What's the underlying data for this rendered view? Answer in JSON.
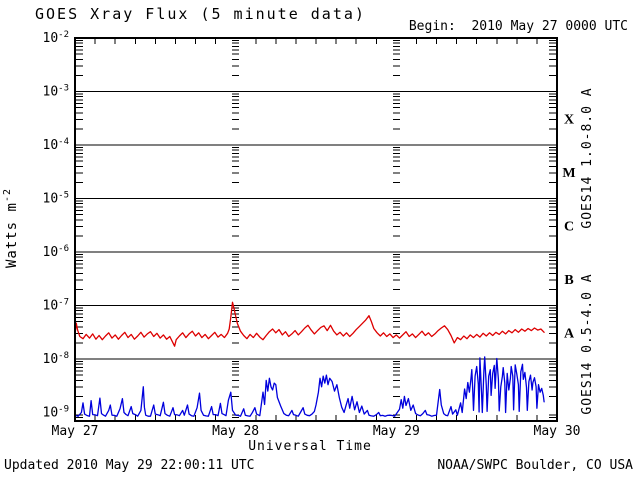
{
  "header": {
    "title": "GOES Xray Flux (5 minute data)",
    "begin": "Begin:  2010 May 27 0000 UTC"
  },
  "footer": {
    "updated": "Updated 2010 May 29 22:00:11 UTC",
    "credit": "NOAA/SWPC Boulder, CO USA"
  },
  "colors": {
    "long_channel": "#dd0000",
    "short_channel": "#0000dd",
    "axis": "#000000",
    "background": "#ffffff"
  },
  "chart_data": {
    "type": "line",
    "title": "GOES Xray Flux (5 minute data)",
    "xlabel": "Universal Time",
    "ylabel_base": "Watts m",
    "ylabel_exp": "-2",
    "x_unit_days_since": "2010 May 27 0000 UTC",
    "xlim_days": [
      0,
      3
    ],
    "ylim_log10": [
      -9.16,
      -2
    ],
    "y_decade_exponents": [
      -2,
      -3,
      -4,
      -5,
      -6,
      -7,
      -8,
      -9
    ],
    "gridline_decades": [
      -3,
      -4,
      -5,
      -6,
      -7,
      -8
    ],
    "xticklabels": [
      "May 27",
      "May 28",
      "May 29",
      "May 30"
    ],
    "xtick_days": [
      0,
      1,
      2,
      3
    ],
    "day_boundary_lines_days": [
      1,
      2
    ],
    "minor_xtick_hours": 3,
    "flux_classes": [
      {
        "label": "X",
        "log10_center": -3.5
      },
      {
        "label": "M",
        "log10_center": -4.5
      },
      {
        "label": "C",
        "log10_center": -5.5
      },
      {
        "label": "B",
        "log10_center": -6.5
      },
      {
        "label": "A",
        "log10_center": -7.5
      }
    ],
    "series": [
      {
        "name": "long",
        "label": "GOES14 1.0-8.0 A",
        "color_key": "long_channel",
        "noise_log10": 0.025,
        "t_log10flux": [
          0,
          -7.55,
          0.008,
          -7.33,
          0.016,
          -7.46,
          0.03,
          -7.58,
          0.05,
          -7.62,
          0.07,
          -7.54,
          0.09,
          -7.61,
          0.11,
          -7.53,
          0.13,
          -7.63,
          0.15,
          -7.56,
          0.17,
          -7.64,
          0.19,
          -7.57,
          0.21,
          -7.51,
          0.23,
          -7.61,
          0.25,
          -7.55,
          0.27,
          -7.63,
          0.29,
          -7.56,
          0.31,
          -7.5,
          0.33,
          -7.6,
          0.35,
          -7.54,
          0.37,
          -7.63,
          0.39,
          -7.57,
          0.41,
          -7.5,
          0.43,
          -7.59,
          0.45,
          -7.53,
          0.47,
          -7.49,
          0.49,
          -7.58,
          0.51,
          -7.52,
          0.53,
          -7.61,
          0.55,
          -7.55,
          0.57,
          -7.63,
          0.59,
          -7.58,
          0.61,
          -7.7,
          0.62,
          -7.76,
          0.63,
          -7.64,
          0.65,
          -7.57,
          0.67,
          -7.51,
          0.69,
          -7.6,
          0.71,
          -7.53,
          0.73,
          -7.48,
          0.75,
          -7.57,
          0.77,
          -7.51,
          0.79,
          -7.6,
          0.81,
          -7.54,
          0.83,
          -7.62,
          0.85,
          -7.56,
          0.87,
          -7.5,
          0.89,
          -7.59,
          0.91,
          -7.54,
          0.93,
          -7.6,
          0.95,
          -7.52,
          0.96,
          -7.44,
          0.97,
          -7.22,
          0.98,
          -6.94,
          0.99,
          -7.06,
          1.0,
          -7.2,
          1.01,
          -7.33,
          1.03,
          -7.48,
          1.05,
          -7.56,
          1.07,
          -7.62,
          1.09,
          -7.54,
          1.11,
          -7.6,
          1.13,
          -7.52,
          1.15,
          -7.59,
          1.17,
          -7.64,
          1.19,
          -7.56,
          1.21,
          -7.49,
          1.23,
          -7.44,
          1.25,
          -7.51,
          1.27,
          -7.45,
          1.29,
          -7.55,
          1.31,
          -7.49,
          1.33,
          -7.58,
          1.35,
          -7.53,
          1.37,
          -7.47,
          1.39,
          -7.55,
          1.41,
          -7.49,
          1.43,
          -7.42,
          1.45,
          -7.37,
          1.47,
          -7.46,
          1.49,
          -7.53,
          1.51,
          -7.47,
          1.53,
          -7.41,
          1.55,
          -7.38,
          1.57,
          -7.47,
          1.59,
          -7.37,
          1.61,
          -7.48,
          1.63,
          -7.55,
          1.65,
          -7.5,
          1.67,
          -7.57,
          1.69,
          -7.51,
          1.71,
          -7.58,
          1.73,
          -7.52,
          1.75,
          -7.45,
          1.77,
          -7.39,
          1.79,
          -7.33,
          1.81,
          -7.27,
          1.83,
          -7.19,
          1.845,
          -7.3,
          1.86,
          -7.43,
          1.88,
          -7.51,
          1.9,
          -7.57,
          1.92,
          -7.51,
          1.94,
          -7.58,
          1.96,
          -7.53,
          1.98,
          -7.6,
          2.0,
          -7.55,
          2.02,
          -7.61,
          2.04,
          -7.55,
          2.06,
          -7.49,
          2.08,
          -7.58,
          2.1,
          -7.53,
          2.12,
          -7.6,
          2.14,
          -7.54,
          2.16,
          -7.48,
          2.18,
          -7.56,
          2.2,
          -7.51,
          2.22,
          -7.58,
          2.24,
          -7.53,
          2.26,
          -7.47,
          2.28,
          -7.42,
          2.3,
          -7.38,
          2.32,
          -7.45,
          2.34,
          -7.56,
          2.36,
          -7.7,
          2.38,
          -7.6,
          2.4,
          -7.64,
          2.42,
          -7.57,
          2.44,
          -7.62,
          2.46,
          -7.55,
          2.48,
          -7.6,
          2.5,
          -7.54,
          2.52,
          -7.59,
          2.54,
          -7.52,
          2.56,
          -7.57,
          2.58,
          -7.51,
          2.6,
          -7.56,
          2.62,
          -7.5,
          2.64,
          -7.54,
          2.66,
          -7.48,
          2.68,
          -7.53,
          2.7,
          -7.47,
          2.72,
          -7.51,
          2.74,
          -7.45,
          2.76,
          -7.5,
          2.78,
          -7.44,
          2.8,
          -7.48,
          2.82,
          -7.43,
          2.84,
          -7.47,
          2.86,
          -7.42,
          2.88,
          -7.46,
          2.9,
          -7.44,
          2.92,
          -7.5
        ]
      },
      {
        "name": "short",
        "label": "GOES14 0.5-4.0 A",
        "color_key": "short_channel",
        "noise_log10": 0.01,
        "t_log10flux": [
          0,
          -9.05,
          0.02,
          -9.07,
          0.04,
          -9.0,
          0.05,
          -8.82,
          0.06,
          -9.03,
          0.09,
          -9.07,
          0.1,
          -8.78,
          0.11,
          -9.04,
          0.14,
          -9.06,
          0.155,
          -8.73,
          0.165,
          -9.02,
          0.19,
          -9.07,
          0.21,
          -8.96,
          0.22,
          -8.86,
          0.23,
          -9.05,
          0.26,
          -9.07,
          0.28,
          -8.93,
          0.295,
          -8.74,
          0.305,
          -9.0,
          0.33,
          -9.06,
          0.35,
          -8.89,
          0.36,
          -9.02,
          0.39,
          -9.07,
          0.41,
          -8.96,
          0.425,
          -8.52,
          0.432,
          -8.9,
          0.44,
          -9.05,
          0.47,
          -9.07,
          0.49,
          -8.86,
          0.5,
          -9.03,
          0.53,
          -9.06,
          0.55,
          -8.81,
          0.56,
          -9.02,
          0.59,
          -9.07,
          0.61,
          -8.91,
          0.62,
          -9.04,
          0.65,
          -9.06,
          0.67,
          -8.96,
          0.68,
          -9.05,
          0.7,
          -8.86,
          0.71,
          -9.03,
          0.74,
          -9.07,
          0.76,
          -8.91,
          0.775,
          -8.64,
          0.785,
          -8.96,
          0.8,
          -9.05,
          0.83,
          -9.07,
          0.85,
          -8.89,
          0.86,
          -9.04,
          0.89,
          -9.06,
          0.905,
          -8.83,
          0.915,
          -9.02,
          0.94,
          -9.06,
          0.955,
          -8.77,
          0.97,
          -8.62,
          0.98,
          -8.96,
          1.0,
          -9.05,
          1.03,
          -9.07,
          1.05,
          -8.93,
          1.06,
          -9.05,
          1.09,
          -9.07,
          1.12,
          -8.91,
          1.13,
          -9.03,
          1.15,
          -9.06,
          1.17,
          -8.62,
          1.18,
          -8.85,
          1.19,
          -8.4,
          1.2,
          -8.6,
          1.21,
          -8.36,
          1.22,
          -8.52,
          1.23,
          -8.58,
          1.24,
          -8.45,
          1.25,
          -8.48,
          1.26,
          -8.72,
          1.28,
          -8.88,
          1.3,
          -9.02,
          1.33,
          -9.06,
          1.35,
          -8.96,
          1.36,
          -9.04,
          1.39,
          -9.07,
          1.42,
          -8.91,
          1.43,
          -9.03,
          1.46,
          -9.06,
          1.49,
          -8.98,
          1.5,
          -8.86,
          1.515,
          -8.62,
          1.525,
          -8.36,
          1.535,
          -8.52,
          1.545,
          -8.32,
          1.555,
          -8.45,
          1.565,
          -8.3,
          1.575,
          -8.48,
          1.585,
          -8.36,
          1.6,
          -8.42,
          1.615,
          -8.6,
          1.63,
          -8.48,
          1.645,
          -8.72,
          1.66,
          -8.9,
          1.675,
          -9.0,
          1.7,
          -8.74,
          1.71,
          -8.92,
          1.725,
          -8.7,
          1.74,
          -8.95,
          1.755,
          -8.8,
          1.77,
          -9.0,
          1.785,
          -8.88,
          1.8,
          -9.03,
          1.82,
          -8.96,
          1.83,
          -9.05,
          1.86,
          -9.07,
          1.89,
          -9.0,
          1.9,
          -9.06,
          1.93,
          -9.07,
          1.96,
          -9.05,
          1.99,
          -9.07,
          2.02,
          -8.94,
          2.03,
          -8.76,
          2.04,
          -8.92,
          2.05,
          -8.7,
          2.06,
          -8.87,
          2.075,
          -8.74,
          2.09,
          -8.96,
          2.105,
          -8.86,
          2.12,
          -9.02,
          2.15,
          -9.06,
          2.18,
          -8.96,
          2.19,
          -9.04,
          2.22,
          -9.07,
          2.25,
          -9.05,
          2.27,
          -8.57,
          2.28,
          -8.86,
          2.295,
          -9.02,
          2.32,
          -9.06,
          2.34,
          -8.89,
          2.35,
          -9.03,
          2.37,
          -8.95,
          2.38,
          -9.05,
          2.4,
          -8.82,
          2.41,
          -9.0,
          2.425,
          -8.56,
          2.435,
          -8.74,
          2.445,
          -8.44,
          2.455,
          -8.62,
          2.465,
          -8.36,
          2.47,
          -8.2,
          2.475,
          -8.52,
          2.48,
          -8.96,
          2.49,
          -8.32,
          2.5,
          -8.14,
          2.51,
          -8.47,
          2.515,
          -8.99,
          2.52,
          -7.98,
          2.53,
          -8.62,
          2.535,
          -9.0,
          2.545,
          -8.22,
          2.55,
          -7.96,
          2.56,
          -8.5,
          2.565,
          -8.98,
          2.575,
          -8.32,
          2.585,
          -8.2,
          2.59,
          -8.68,
          2.6,
          -8.27,
          2.61,
          -8.12,
          2.615,
          -8.55,
          2.625,
          -7.99,
          2.635,
          -8.38,
          2.64,
          -8.97,
          2.65,
          -8.52,
          2.66,
          -8.32,
          2.665,
          -8.16,
          2.675,
          -8.45,
          2.68,
          -9.0,
          2.69,
          -8.27,
          2.7,
          -8.58,
          2.71,
          -8.36,
          2.715,
          -8.14,
          2.725,
          -8.32,
          2.73,
          -8.95,
          2.74,
          -8.11,
          2.75,
          -8.28,
          2.76,
          -8.48,
          2.765,
          -8.98,
          2.775,
          -8.24,
          2.785,
          -8.1,
          2.79,
          -8.38,
          2.8,
          -8.25,
          2.81,
          -8.53,
          2.815,
          -8.96,
          2.825,
          -8.42,
          2.835,
          -8.3,
          2.845,
          -8.58,
          2.85,
          -8.44,
          2.86,
          -8.35,
          2.87,
          -8.52,
          2.875,
          -8.92,
          2.885,
          -8.48,
          2.895,
          -8.62,
          2.905,
          -8.55,
          2.915,
          -8.68,
          2.92,
          -8.8
        ]
      }
    ]
  }
}
